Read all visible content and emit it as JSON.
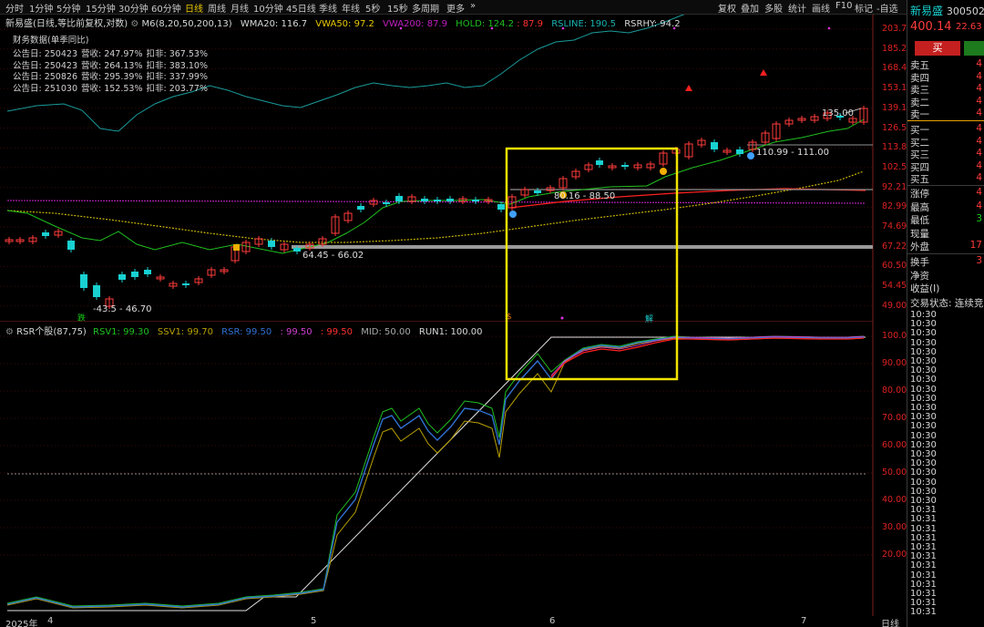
{
  "toolbar": {
    "periods": [
      "分时",
      "1分钟",
      "5分钟",
      "15分钟",
      "30分钟",
      "60分钟",
      "日线",
      "周线",
      "月线",
      "10分钟",
      "45日线",
      "季线",
      "年线",
      "5秒",
      "15秒",
      "多周期",
      "更多"
    ],
    "active_period": "日线",
    "tools": [
      "复权",
      "叠加",
      "多股",
      "统计",
      "画线",
      "F10",
      "标记",
      "-自选"
    ],
    "window_icons": [
      "‹",
      "›",
      "⊡",
      "✕"
    ]
  },
  "main_header": {
    "name": "新易盛(日线,等比前复权,对数)",
    "m6": "M6(8,20,50,200,13)",
    "wma20_label": "WMA20: 116.7",
    "vwa50_label": "VWA50: 97.2",
    "vwa200_label": "VWA200: 87.9",
    "hold_label": "HOLD: 124.2",
    "hold2_label": ": 87.9",
    "rsline_label": "RSLINE: 190.5",
    "rsrhy_label": "RSRHY: 94.2"
  },
  "financials": {
    "title": "财务数据(单季同比)",
    "rows": [
      {
        "date": "公告日: 250423",
        "rev": "营收: 247.97%",
        "net": "扣非: 367.53%"
      },
      {
        "date": "公告日: 250423",
        "rev": "营收: 264.13%",
        "net": "扣非: 383.10%"
      },
      {
        "date": "公告日: 250826",
        "rev": "营收: 295.39%",
        "net": "扣非: 337.99%"
      },
      {
        "date": "公告日: 251030",
        "rev": "营收: 152.53%",
        "net": "扣非: 203.77%"
      }
    ]
  },
  "price_axis": [
    "203.7",
    "185.2",
    "168.4",
    "153.1",
    "139.1",
    "126.5",
    "113.8",
    "102.5",
    "92.21",
    "82.99",
    "74.69",
    "67.22",
    "60.50",
    "54.45",
    "49.00"
  ],
  "annotations": {
    "low_range": "-43.5 - 46.70",
    "range1": "64.45 - 66.02",
    "range2": "80.16 - 88.50",
    "range3": "110.99 - 111.00",
    "peak": "135.00",
    "fall_badge": "跌",
    "marker_s": "$",
    "marker_k": "解"
  },
  "rsr_header": {
    "name": "RSR个股(87,75)",
    "rsv1": "RSV1: 99.30",
    "ssv1": "SSV1: 99.70",
    "rsr": "RSR: 99.50",
    "v4": ": 99.50",
    "v5": ": 99.50",
    "mid": "MID: 50.00",
    "run1": "RUN1: 100.00"
  },
  "rsr_axis": [
    "100.0",
    "90.00",
    "80.00",
    "70.00",
    "60.00",
    "50.00",
    "40.00",
    "30.00",
    "20.00"
  ],
  "x_axis": {
    "labels": [
      "2025年",
      "4",
      "5",
      "6",
      "7"
    ],
    "right_label": "日线"
  },
  "quote": {
    "name": "新易盛",
    "code": "300502",
    "price": "400.14",
    "change": "22.63",
    "buy_label": "买",
    "asks": [
      "卖五",
      "卖四",
      "卖三",
      "卖二",
      "卖一"
    ],
    "bids": [
      "买一",
      "买二",
      "买三",
      "买四",
      "买五"
    ],
    "book_vals": [
      "4",
      "4",
      "4",
      "4",
      "4",
      "4",
      "4",
      "4",
      "4",
      "4"
    ],
    "stats": [
      {
        "label": "涨停",
        "val": "4"
      },
      {
        "label": "最高",
        "val": "4"
      },
      {
        "label": "最低",
        "val": "3"
      },
      {
        "label": "现量",
        "val": ""
      },
      {
        "label": "外盘",
        "val": "17"
      }
    ],
    "stats2": [
      {
        "label": "换手",
        "val": "3"
      },
      {
        "label": "净资",
        "val": ""
      },
      {
        "label": "收益(I)",
        "val": ""
      }
    ],
    "trade_state": "交易状态: 连续竞",
    "ticks": [
      "10:30",
      "10:30",
      "10:30",
      "10:30",
      "10:30",
      "10:30",
      "10:30",
      "10:30",
      "10:30",
      "10:30",
      "10:30",
      "10:30",
      "10:30",
      "10:30",
      "10:30",
      "10:30",
      "10:30",
      "10:30",
      "10:30",
      "10:30",
      "10:30",
      "10:31",
      "10:31",
      "10:31",
      "10:31",
      "10:31",
      "10:31",
      "10:31",
      "10:31",
      "10:31",
      "10:31",
      "10:31",
      "10:31"
    ]
  },
  "colors": {
    "up": "#ff3b3b",
    "down": "#19d1d1",
    "highlight_box": "#f2e400",
    "ma_green": "#1fbf1f",
    "ma_purple": "#b01fb0",
    "ma_yellow": "#c8b400",
    "ma_red": "#ff2020",
    "cyan_line": "#1a9a9a"
  }
}
